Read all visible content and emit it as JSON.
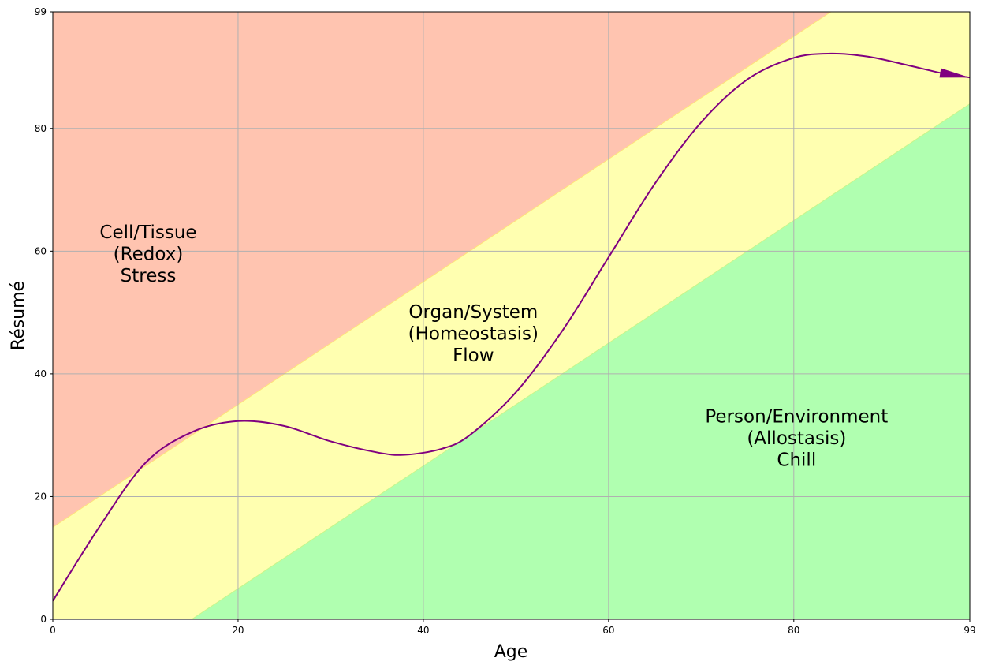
{
  "chart_data": {
    "type": "area",
    "xlabel": "Age",
    "ylabel": "Résumé",
    "xlim": [
      0,
      99
    ],
    "ylim": [
      0,
      99
    ],
    "x_ticks": [
      0,
      20,
      40,
      60,
      80,
      99
    ],
    "y_ticks": [
      0,
      20,
      40,
      60,
      80,
      99
    ],
    "grid": true,
    "regions": [
      {
        "name": "stress",
        "label_lines": [
          "Cell/Tissue",
          "(Redox)",
          "Stress"
        ],
        "label_at": [
          10.3,
          59.6
        ],
        "color": "#ffc4b0",
        "lower_line": {
          "x": [
            0,
            99
          ],
          "y": [
            15,
            114
          ]
        }
      },
      {
        "name": "flow",
        "label_lines": [
          "Organ/System",
          "(Homeostasis)",
          "Flow"
        ],
        "label_at": [
          45.4,
          46.6
        ],
        "color": "#ffffb0",
        "between_lines": true
      },
      {
        "name": "chill",
        "label_lines": [
          "Person/Environment",
          "(Allostasis)",
          "Chill"
        ],
        "label_at": [
          80.3,
          29.6
        ],
        "color": "#b0ffb0",
        "upper_line": {
          "x": [
            15,
            99
          ],
          "y": [
            0,
            84
          ]
        }
      }
    ],
    "series": [
      {
        "color": "#800080",
        "arrow_at_end": true,
        "x": [
          0,
          5,
          10,
          15,
          20,
          25,
          30,
          35,
          38,
          42,
          45,
          50,
          55,
          60,
          65,
          70,
          75,
          80,
          84,
          88,
          92,
          96,
          99
        ],
        "y": [
          3,
          15,
          25.5,
          30.5,
          32.3,
          31.5,
          29,
          27.2,
          26.8,
          27.8,
          30,
          37,
          47,
          59,
          71,
          81,
          88,
          91.5,
          92.2,
          91.7,
          90.4,
          89,
          88.3
        ]
      }
    ]
  }
}
